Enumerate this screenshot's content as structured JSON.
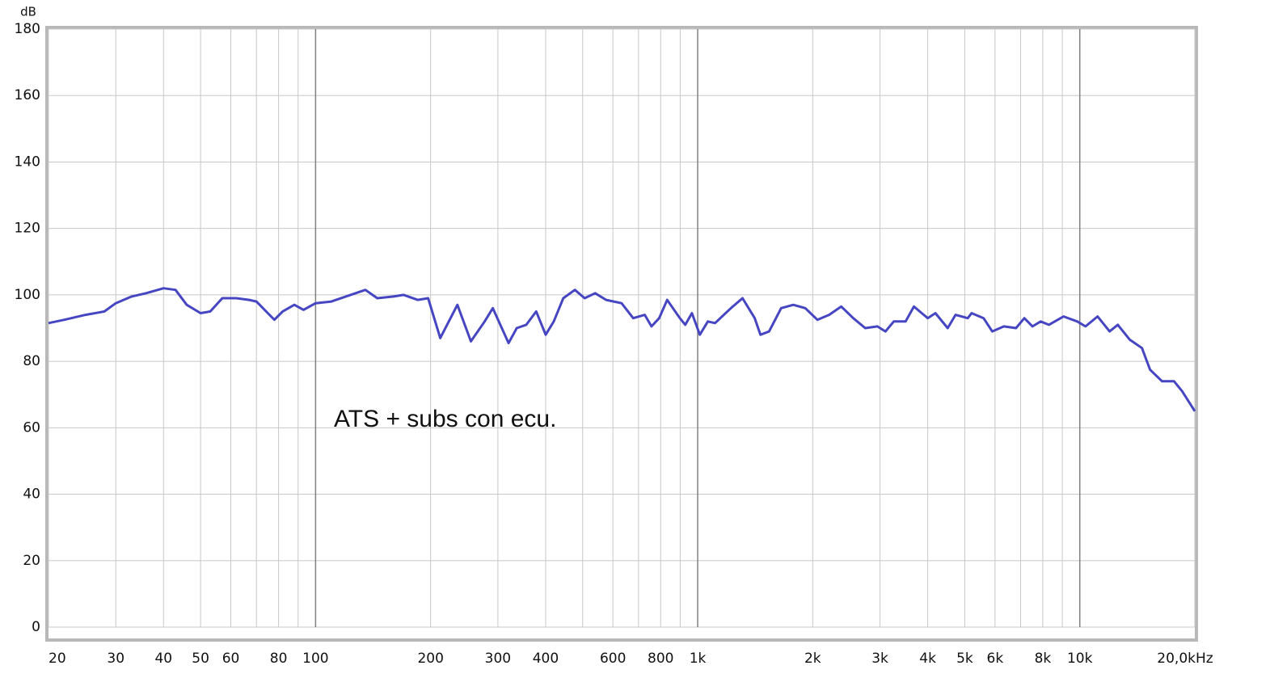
{
  "chart_data": {
    "type": "line",
    "y_unit": "dB",
    "annotation": "ATS + subs con ecu.",
    "x_log": true,
    "grid": true,
    "xlim": [
      20,
      20000
    ],
    "ylim": [
      0,
      180
    ],
    "yticks": [
      0,
      20,
      40,
      60,
      80,
      100,
      120,
      140,
      160,
      180
    ],
    "xticks": [
      20,
      30,
      40,
      50,
      60,
      80,
      100,
      200,
      300,
      400,
      600,
      800,
      {
        "value": 1000,
        "label": "1k"
      },
      {
        "value": 2000,
        "label": "2k"
      },
      {
        "value": 3000,
        "label": "3k"
      },
      {
        "value": 4000,
        "label": "4k"
      },
      {
        "value": 5000,
        "label": "5k"
      },
      {
        "value": 6000,
        "label": "6k"
      },
      {
        "value": 8000,
        "label": "8k"
      },
      {
        "value": 10000,
        "label": "10k"
      },
      {
        "value": 20000,
        "label": "20,0kHz"
      }
    ],
    "xgrid_minor": [
      70,
      90,
      500,
      700,
      900,
      7000,
      9000
    ],
    "series": [
      {
        "color": "#4646c2",
        "x": [
          20,
          22,
          25,
          28,
          30,
          33,
          36,
          40,
          43,
          46,
          50,
          53,
          57,
          62,
          67,
          70,
          75,
          78,
          82,
          88,
          93,
          100,
          110,
          120,
          135,
          145,
          160,
          170,
          185,
          197,
          212,
          235,
          255,
          277,
          291,
          320,
          336,
          356,
          378,
          400,
          420,
          445,
          477,
          506,
          539,
          576,
          632,
          678,
          727,
          757,
          793,
          832,
          898,
          928,
          966,
          1013,
          1063,
          1110,
          1222,
          1310,
          1410,
          1460,
          1538,
          1654,
          1779,
          1912,
          2057,
          2207,
          2375,
          2554,
          2745,
          2953,
          3100,
          3260,
          3500,
          3680,
          4000,
          4190,
          4510,
          4730,
          5090,
          5210,
          5600,
          5900,
          6330,
          6810,
          7160,
          7520,
          7900,
          8300,
          9070,
          9850,
          10350,
          11130,
          11970,
          12570,
          13520,
          14540,
          15270,
          16420,
          17650,
          18530,
          20000
        ],
        "values": [
          91.5,
          92.5,
          94,
          95,
          97.5,
          99.5,
          100.5,
          102,
          101.5,
          97,
          94.5,
          95,
          99,
          99,
          98.5,
          98,
          94.5,
          92.5,
          95,
          97,
          95.5,
          97.5,
          98,
          99.5,
          101.5,
          99,
          99.5,
          100,
          98.5,
          99,
          87,
          97,
          86,
          92,
          96,
          85.5,
          90,
          91,
          95,
          88,
          92,
          99,
          101.5,
          99,
          100.5,
          98.5,
          97.5,
          93,
          94,
          90.5,
          93,
          98.5,
          93,
          91,
          94.5,
          88,
          92,
          91.5,
          96,
          99,
          93,
          88,
          89,
          96,
          97,
          96,
          92.5,
          94,
          96.5,
          93,
          90,
          90.5,
          89,
          92,
          92,
          96.5,
          93,
          94.5,
          90,
          94,
          93,
          94.5,
          93,
          89,
          90.5,
          90,
          93,
          90.5,
          92,
          91,
          93.5,
          92,
          90.5,
          93.5,
          89,
          91,
          86.5,
          84,
          77.5,
          74,
          74,
          71,
          65
        ]
      }
    ]
  }
}
